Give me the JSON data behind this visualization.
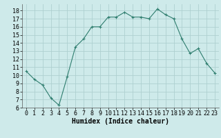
{
  "x": [
    0,
    1,
    2,
    3,
    4,
    5,
    6,
    7,
    8,
    9,
    10,
    11,
    12,
    13,
    14,
    15,
    16,
    17,
    18,
    19,
    20,
    21,
    22,
    23
  ],
  "y": [
    10.5,
    9.5,
    8.8,
    7.2,
    6.3,
    9.8,
    13.5,
    14.5,
    16.0,
    16.0,
    17.2,
    17.2,
    17.8,
    17.2,
    17.2,
    17.0,
    18.2,
    17.5,
    17.0,
    14.5,
    12.7,
    13.3,
    11.5,
    10.3
  ],
  "line_color": "#2e7d6e",
  "marker": "+",
  "marker_size": 3,
  "marker_linewidth": 0.8,
  "bg_color": "#ceeaea",
  "grid_color": "#aed0d0",
  "xlabel": "Humidex (Indice chaleur)",
  "xlabel_fontsize": 7,
  "tick_fontsize": 6,
  "xlim": [
    -0.5,
    23.5
  ],
  "ylim": [
    6,
    18.8
  ],
  "yticks": [
    6,
    7,
    8,
    9,
    10,
    11,
    12,
    13,
    14,
    15,
    16,
    17,
    18
  ],
  "xticks": [
    0,
    1,
    2,
    3,
    4,
    5,
    6,
    7,
    8,
    9,
    10,
    11,
    12,
    13,
    14,
    15,
    16,
    17,
    18,
    19,
    20,
    21,
    22,
    23
  ]
}
